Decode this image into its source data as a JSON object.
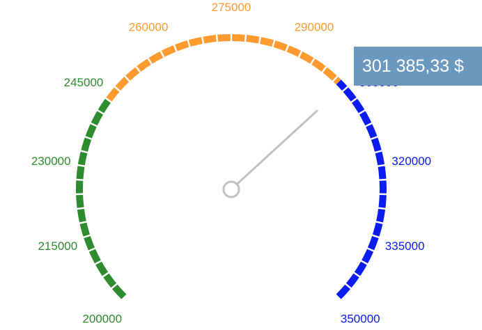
{
  "chart_data": {
    "type": "gauge",
    "min": 200000,
    "max": 350000,
    "value": 301385.33,
    "value_label": "301 385,33 $",
    "ticks": [
      200000,
      215000,
      230000,
      245000,
      260000,
      275000,
      290000,
      305000,
      320000,
      335000,
      350000
    ],
    "tick_labels": [
      "200000",
      "215000",
      "230000",
      "245000",
      "260000",
      "275000",
      "290000",
      "305000",
      "320000",
      "335000",
      "350000"
    ],
    "bands": [
      {
        "from": 200000,
        "to": 245000,
        "color": "#2e8b2e"
      },
      {
        "from": 245000,
        "to": 300000,
        "color": "#ff9a2e"
      },
      {
        "from": 300000,
        "to": 350000,
        "color": "#0a1cf0"
      }
    ],
    "needle_color": "#c0c0c0"
  }
}
